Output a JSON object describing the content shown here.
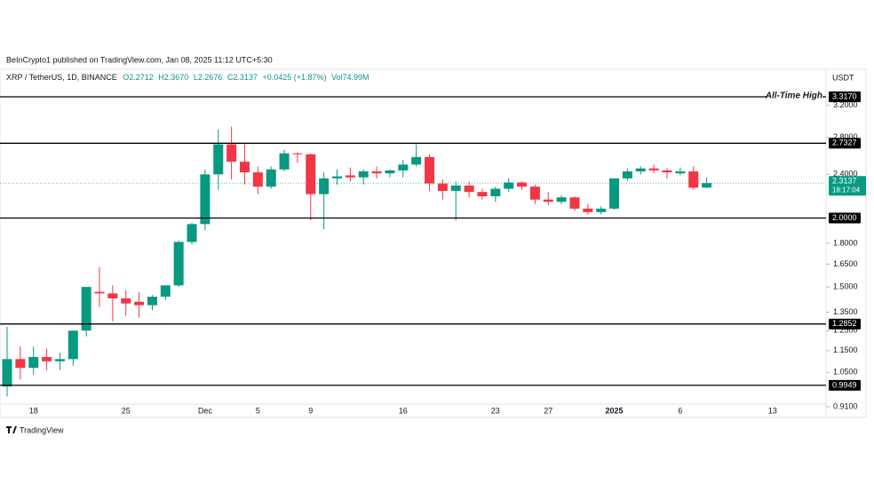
{
  "chart_data": {
    "type": "candlestick",
    "published": "BeInCrypto1 published on TradingView.com, Jan 08, 2025 11:12 UTC+5:30",
    "symbol": "XRP / TetherUS, 1D, BINANCE",
    "ohlc_labels": [
      "O2.2712",
      "H2.3670",
      "L2.2676",
      "C2.3137"
    ],
    "change": "+0.0425 (+1.87%)",
    "volume": "Vol74.99M",
    "currency": "USDT",
    "brand": "TradingView",
    "up_color": "#089981",
    "down_color": "#f23645",
    "log_scale": true,
    "grid": false,
    "categories": [
      null,
      null,
      "18",
      null,
      null,
      null,
      null,
      null,
      null,
      "25",
      null,
      null,
      null,
      null,
      null,
      "Dec",
      null,
      null,
      null,
      "5",
      null,
      null,
      null,
      "9",
      null,
      null,
      null,
      null,
      null,
      null,
      "16",
      null,
      null,
      null,
      null,
      null,
      null,
      "23",
      null,
      null,
      null,
      "27",
      null,
      null,
      null,
      null,
      "2025",
      null,
      null,
      null,
      null,
      "6",
      null,
      null,
      null,
      null,
      null,
      null,
      "13"
    ],
    "open": [
      0.99,
      1.11,
      1.07,
      1.12,
      1.1,
      1.11,
      1.25,
      1.47,
      1.46,
      1.43,
      1.41,
      1.39,
      1.44,
      1.51,
      1.81,
      1.95,
      2.4,
      2.72,
      2.53,
      2.42,
      2.28,
      2.45,
      2.62,
      2.61,
      2.21,
      2.36,
      2.39,
      2.37,
      2.43,
      2.41,
      2.44,
      2.5,
      2.58,
      2.31,
      2.24,
      2.29,
      2.23,
      2.19,
      2.26,
      2.32,
      2.28,
      2.16,
      2.14,
      2.18,
      2.08,
      2.05,
      2.08,
      2.36,
      2.43,
      2.46,
      2.44,
      2.41,
      2.43,
      2.2712,
      null,
      null,
      null,
      null,
      null
    ],
    "high": [
      1.27,
      1.17,
      1.17,
      1.16,
      1.14,
      1.25,
      1.5,
      1.63,
      1.51,
      1.48,
      1.47,
      1.45,
      1.51,
      1.82,
      1.96,
      2.45,
      2.89,
      2.93,
      2.72,
      2.48,
      2.48,
      2.66,
      2.63,
      2.62,
      2.42,
      2.45,
      2.47,
      2.45,
      2.48,
      2.45,
      2.55,
      2.72,
      2.61,
      2.35,
      2.33,
      2.33,
      2.26,
      2.28,
      2.36,
      2.33,
      2.3,
      2.23,
      2.2,
      2.19,
      2.12,
      2.1,
      2.36,
      2.46,
      2.48,
      2.5,
      2.46,
      2.47,
      2.48,
      2.367,
      null,
      null,
      null,
      null,
      null
    ],
    "low": [
      0.95,
      1.02,
      1.04,
      1.06,
      1.06,
      1.08,
      1.22,
      1.38,
      1.3,
      1.33,
      1.32,
      1.36,
      1.42,
      1.5,
      1.79,
      1.9,
      2.25,
      2.35,
      2.3,
      2.21,
      2.26,
      2.43,
      2.52,
      1.98,
      1.91,
      2.3,
      2.33,
      2.3,
      2.36,
      2.37,
      2.37,
      2.48,
      2.24,
      2.16,
      1.98,
      2.18,
      2.16,
      2.14,
      2.23,
      2.25,
      2.12,
      2.11,
      2.12,
      2.06,
      2.03,
      2.03,
      2.07,
      2.34,
      2.4,
      2.41,
      2.36,
      2.39,
      2.25,
      2.2676,
      null,
      null,
      null,
      null,
      null
    ],
    "close": [
      1.11,
      1.07,
      1.12,
      1.1,
      1.11,
      1.25,
      1.5,
      1.46,
      1.43,
      1.4,
      1.39,
      1.44,
      1.51,
      1.81,
      1.95,
      2.4,
      2.72,
      2.53,
      2.42,
      2.28,
      2.45,
      2.62,
      2.61,
      2.21,
      2.36,
      2.38,
      2.37,
      2.43,
      2.41,
      2.44,
      2.5,
      2.58,
      2.31,
      2.24,
      2.29,
      2.23,
      2.19,
      2.26,
      2.32,
      2.28,
      2.16,
      2.14,
      2.18,
      2.08,
      2.05,
      2.08,
      2.36,
      2.43,
      2.46,
      2.44,
      2.42,
      2.43,
      2.27,
      2.3137,
      null,
      null,
      null,
      null,
      null
    ],
    "ylim": [
      0.92,
      3.43
    ],
    "yticks": [
      {
        "value": 0.91,
        "label": "0.9100"
      },
      {
        "value": 1.05,
        "label": "1.0500"
      },
      {
        "value": 1.15,
        "label": "1.1500"
      },
      {
        "value": 1.25,
        "label": "1.2500"
      },
      {
        "value": 1.35,
        "label": "1.3500"
      },
      {
        "value": 1.5,
        "label": "1.5000"
      },
      {
        "value": 1.65,
        "label": "1.6500"
      },
      {
        "value": 1.8,
        "label": "1.8000"
      },
      {
        "value": 2.4,
        "label": "2.4000"
      },
      {
        "value": 2.8,
        "label": "2.8000"
      },
      {
        "value": 3.2,
        "label": "3.2000"
      }
    ],
    "levels": [
      {
        "value": 3.317,
        "label": "3.3170",
        "annotation": "All-Time High"
      },
      {
        "value": 2.7327,
        "label": "2.7327"
      },
      {
        "value": 2.0,
        "label": "2.0000"
      },
      {
        "value": 1.2852,
        "label": "1.2852"
      },
      {
        "value": 0.9949,
        "label": "0.9949"
      }
    ],
    "last_price": {
      "value": 2.3137,
      "label": "2.3137",
      "countdown": "18:17:04"
    }
  }
}
